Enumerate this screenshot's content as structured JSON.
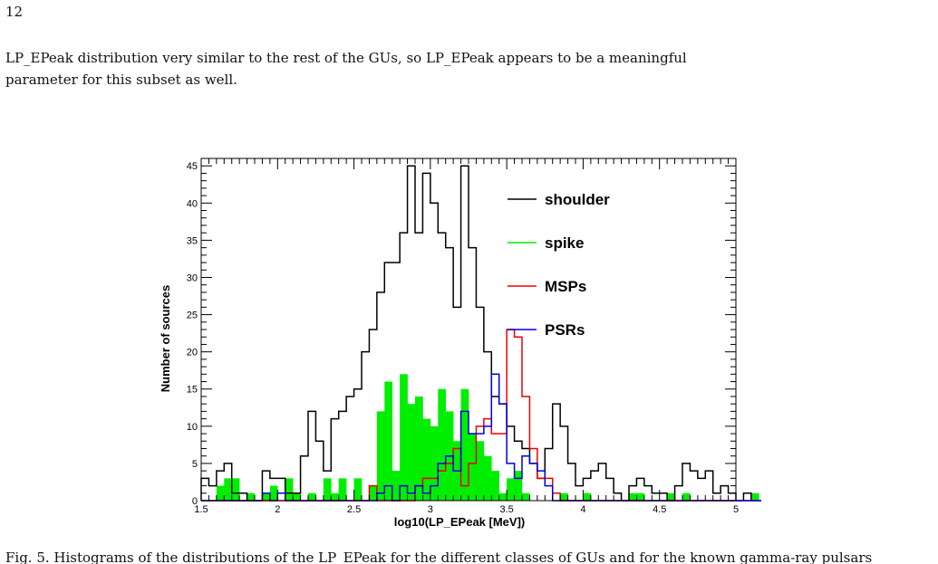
{
  "page": {
    "number": "12",
    "paragraph": "LP_EPeak distribution very similar to the rest of the GUs, so LP_EPeak appears to be a meaningful\nparameter for this subset as well.",
    "caption_partial": "Fig. 5. Histograms of the distributions of the LP_EPeak for the different classes of GUs and for the known gamma-ray pulsars"
  },
  "chart_data": {
    "type": "line",
    "xlabel": "log10(LP_EPeak [MeV])",
    "ylabel": "Number of sources",
    "xlim": [
      1.5,
      5.0
    ],
    "ylim": [
      0,
      46
    ],
    "xticks": [
      1.5,
      2,
      2.5,
      3,
      3.5,
      4,
      4.5,
      5
    ],
    "yticks": [
      0,
      5,
      10,
      15,
      20,
      25,
      30,
      35,
      40,
      45
    ],
    "bin_width": 0.05,
    "legend_position": "top-right",
    "series": [
      {
        "name": "shoulder",
        "color": "#000000",
        "style": "step",
        "values": [
          3,
          2,
          4,
          5,
          1,
          1,
          0,
          0,
          4,
          3,
          3,
          1,
          1,
          6,
          12,
          8,
          4,
          11,
          12,
          14,
          15,
          20,
          23,
          28,
          32,
          32,
          36,
          45,
          36,
          44,
          40,
          36,
          34,
          26,
          45,
          34,
          26,
          20,
          14,
          13,
          10,
          8,
          7,
          5,
          3,
          7,
          13,
          10,
          5,
          2,
          3,
          4,
          5,
          3,
          1,
          0,
          2,
          3,
          2,
          1,
          1,
          0,
          2,
          5,
          4,
          3,
          4,
          1,
          2,
          1,
          0,
          1,
          0,
          0,
          0,
          0,
          0,
          0,
          0,
          0
        ]
      },
      {
        "name": "spike",
        "color": "#00ee00",
        "style": "filled",
        "values": [
          0,
          0,
          2,
          3,
          3,
          0,
          1,
          0,
          1,
          2,
          0,
          3,
          1,
          0,
          1,
          0,
          3,
          1,
          3,
          0,
          3,
          0,
          2,
          12,
          16,
          4,
          17,
          13,
          14,
          11,
          10,
          15,
          12,
          8,
          15,
          9,
          8,
          6,
          4,
          1,
          3,
          4,
          1,
          0,
          0,
          0,
          0,
          1,
          0,
          0,
          1,
          0,
          0,
          0,
          0,
          0,
          1,
          1,
          0,
          0,
          0,
          1,
          0,
          1,
          0,
          0,
          0,
          0,
          0,
          0,
          0,
          0,
          1,
          0,
          0,
          0,
          0,
          1,
          0,
          0
        ]
      },
      {
        "name": "MSPs",
        "color": "#ee0000",
        "style": "step",
        "values": [
          0,
          0,
          0,
          0,
          0,
          0,
          0,
          0,
          0,
          0,
          0,
          0,
          0,
          0,
          0,
          0,
          0,
          0,
          0,
          0,
          0,
          0,
          2,
          0,
          0,
          0,
          0,
          0,
          2,
          3,
          3,
          4,
          5,
          7,
          2,
          5,
          10,
          11,
          9,
          9,
          23,
          22,
          14,
          7,
          3,
          3,
          1,
          0,
          0,
          0,
          0,
          0,
          0,
          0,
          0,
          0,
          0,
          0,
          0,
          0,
          0,
          0,
          0,
          0,
          0,
          0,
          0,
          0,
          0,
          0,
          0,
          0,
          0,
          0,
          0,
          0,
          0,
          0,
          0,
          0
        ]
      },
      {
        "name": "PSRs",
        "color": "#0000dd",
        "style": "step",
        "values": [
          0,
          0,
          0,
          0,
          0,
          0,
          0,
          0,
          1,
          0,
          1,
          0,
          0,
          0,
          0,
          0,
          0,
          0,
          0,
          0,
          0,
          0,
          0,
          1,
          2,
          0,
          2,
          1,
          2,
          1,
          2,
          5,
          6,
          4,
          12,
          9,
          9,
          10,
          17,
          13,
          5,
          3,
          6,
          5,
          4,
          2,
          0,
          0,
          0,
          0,
          0,
          0,
          0,
          0,
          0,
          0,
          0,
          0,
          0,
          0,
          0,
          0,
          0,
          0,
          0,
          0,
          0,
          0,
          0,
          0,
          0,
          0,
          0,
          0,
          0,
          0,
          0,
          0,
          0,
          0
        ]
      }
    ]
  }
}
